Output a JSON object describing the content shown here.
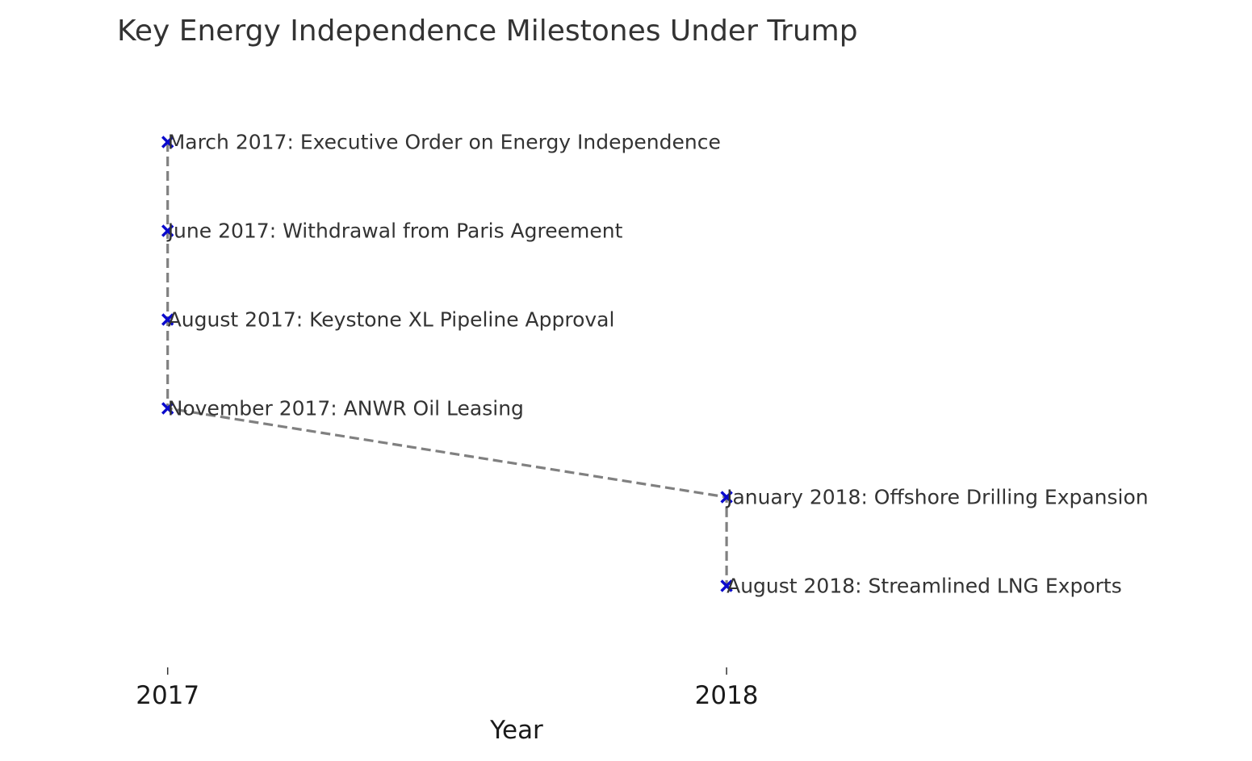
{
  "chart_data": {
    "type": "line",
    "title": "Key Energy Independence Milestones Under Trump",
    "xlabel": "Year",
    "ylabel": "",
    "x_ticks": [
      2017,
      2018
    ],
    "x_tick_labels": [
      "2017",
      "2018"
    ],
    "xlim": [
      2016.7,
      2018.94
    ],
    "grid": false,
    "line_style": "dashed",
    "line_color": "#808080",
    "marker": "x",
    "marker_color": "#0a0acc",
    "text_color": "#333333",
    "events": [
      {
        "year": 2017,
        "label": "March 2017: Executive Order on Energy Independence"
      },
      {
        "year": 2017,
        "label": "June 2017: Withdrawal from Paris Agreement"
      },
      {
        "year": 2017,
        "label": "August 2017: Keystone XL Pipeline Approval"
      },
      {
        "year": 2017,
        "label": "November 2017: ANWR Oil Leasing"
      },
      {
        "year": 2018,
        "label": "January 2018: Offshore Drilling Expansion"
      },
      {
        "year": 2018,
        "label": "August 2018: Streamlined LNG Exports"
      }
    ]
  }
}
